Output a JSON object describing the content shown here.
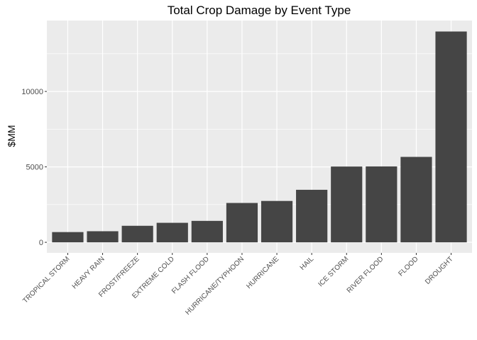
{
  "chart_data": {
    "type": "bar",
    "title": "Total Crop Damage by Event Type",
    "xlabel": "",
    "ylabel": "$MM",
    "categories": [
      "TROPICAL STORM",
      "HEAVY RAIN",
      "FROST/FREEZE",
      "EXTREME COLD",
      "FLASH FLOOD",
      "HURRICANE/TYPHOON",
      "HURRICANE",
      "HAIL",
      "ICE STORM",
      "RIVER FLOOD",
      "FLOOD",
      "DROUGHT"
    ],
    "values": [
      678,
      734,
      1095,
      1293,
      1421,
      2608,
      2742,
      3481,
      5022,
      5029,
      5662,
      13973
    ],
    "yticks": [
      0,
      5000,
      10000
    ],
    "ylim": [
      -700,
      14700
    ],
    "grid": true,
    "legend": "none",
    "colors": {
      "panel": "#ebebeb",
      "grid": "#ffffff",
      "bar": "#454545"
    }
  }
}
